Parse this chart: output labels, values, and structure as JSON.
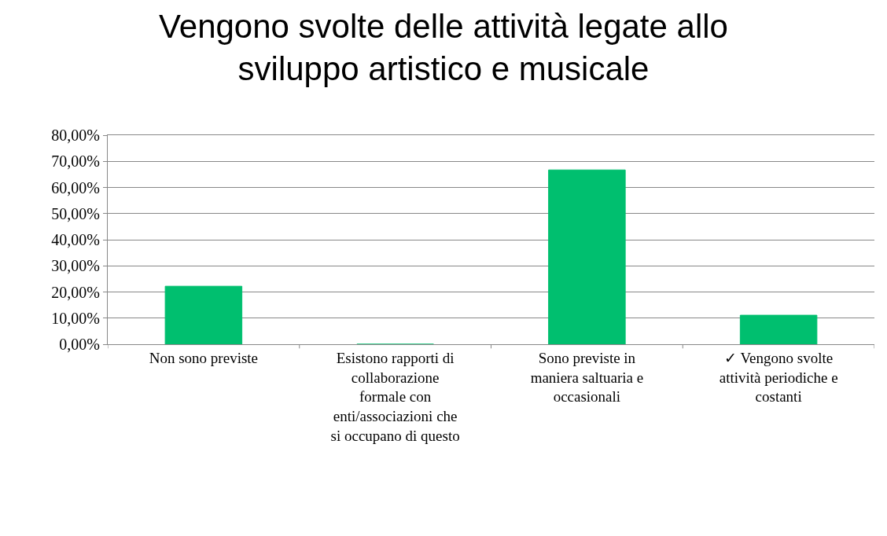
{
  "chart_data": {
    "type": "bar",
    "title": "Vengono svolte delle attività legate allo sviluppo artistico e musicale",
    "categories": [
      "Non sono previste",
      "Esistono rapporti di collaborazione formale con enti/associazioni che si occupano di questo",
      "Sono previste in maniera saltuaria e occasionali",
      "✓ Vengono svolte attività periodiche e costanti"
    ],
    "values": [
      22.2,
      0,
      66.7,
      11.1
    ],
    "color": "#00bf6f",
    "ylim": [
      0,
      80
    ],
    "yticks": [
      {
        "value": 0,
        "label": "0,00%"
      },
      {
        "value": 10,
        "label": "10,00%"
      },
      {
        "value": 20,
        "label": "20,00%"
      },
      {
        "value": 30,
        "label": "30,00%"
      },
      {
        "value": 40,
        "label": "40,00%"
      },
      {
        "value": 50,
        "label": "50,00%"
      },
      {
        "value": 60,
        "label": "60,00%"
      },
      {
        "value": 70,
        "label": "70,00%"
      },
      {
        "value": 80,
        "label": "80,00%"
      }
    ],
    "grid": "y"
  }
}
